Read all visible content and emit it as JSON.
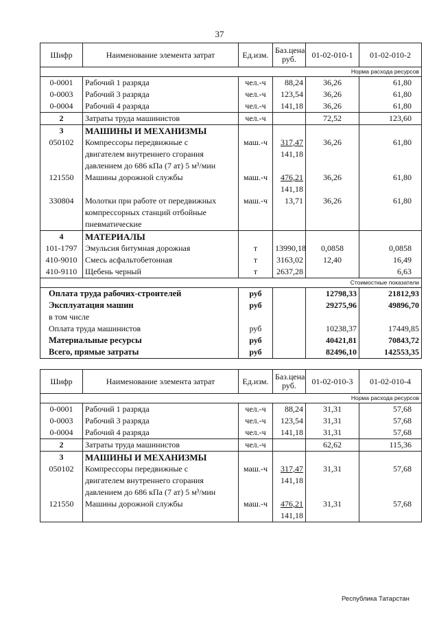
{
  "page_number": "37",
  "footer": "Республика Татарстан",
  "headers": {
    "code": "Шифр",
    "name": "Наименование элемента затрат",
    "unit": "Ед.изм.",
    "price": "Баз.цена\nруб."
  },
  "tables": [
    {
      "cols": [
        "01-02-010-1",
        "01-02-010-2"
      ],
      "norm_label": "Норма расхода ресурсов",
      "cost_label": "Стоимостные показатели",
      "rows": [
        {
          "code": "0-0001",
          "name": "Рабочий 1 разряда",
          "unit": "чел.-ч",
          "price": "88,24",
          "v1": "36,26",
          "v2": "61,80",
          "sep": true
        },
        {
          "code": "0-0003",
          "name": "Рабочий 3 разряда",
          "unit": "чел.-ч",
          "price": "123,54",
          "v1": "36,26",
          "v2": "61,80"
        },
        {
          "code": "0-0004",
          "name": "Рабочий 4 разряда",
          "unit": "чел.-ч",
          "price": "141,18",
          "v1": "36,26",
          "v2": "61,80"
        },
        {
          "code": "2",
          "name": "Затраты труда машинистов",
          "unit": "чел.-ч",
          "price": "",
          "v1": "72,52",
          "v2": "123,60",
          "sep": true,
          "boldcode": true
        },
        {
          "code": "3",
          "name": "МАШИНЫ И МЕХАНИЗМЫ",
          "unit": "",
          "price": "",
          "v1": "",
          "v2": "",
          "sep": true,
          "bold": true
        },
        {
          "code": "050102",
          "name": "Компрессоры передвижные с\nдвигателем внутреннего сгорания\nдавлением до 686 кПа (7 ат) 5 м³/мин",
          "unit": "маш.-ч",
          "price": "317,47",
          "price2": "141,18",
          "v1": "36,26",
          "v2": "61,80"
        },
        {
          "code": "121550",
          "name": "Машины дорожной службы",
          "unit": "маш.-ч",
          "price": "476,21",
          "price2": "141,18",
          "v1": "36,26",
          "v2": "61,80"
        },
        {
          "code": "330804",
          "name": "Молотки при работе от передвижных\nкомпрессорных станций отбойные\nпневматические",
          "unit": "маш.-ч",
          "price": "13,71",
          "v1": "36,26",
          "v2": "61,80"
        },
        {
          "code": "4",
          "name": "МАТЕРИАЛЫ",
          "unit": "",
          "price": "",
          "v1": "",
          "v2": "",
          "sep": true,
          "bold": true
        },
        {
          "code": "101-1797",
          "name": "Эмульсия битумная дорожная",
          "unit": "т",
          "price": "13990,18",
          "v1": "0,0858",
          "v2": "0,0858"
        },
        {
          "code": "410-9010",
          "name": "Смесь асфальтобетонная",
          "unit": "т",
          "price": "3163,02",
          "v1": "12,40",
          "v2": "16,49"
        },
        {
          "code": "410-9110",
          "name": "Щебень черный",
          "unit": "т",
          "price": "2637,28",
          "v1": "",
          "v2": "6,63"
        }
      ],
      "totals": [
        {
          "name": "Оплата труда рабочих-строителей",
          "unit": "руб",
          "v1": "12798,33",
          "v2": "21812,93",
          "bold": true
        },
        {
          "name": "Эксплуатация машин",
          "unit": "руб",
          "v1": "29275,96",
          "v2": "49896,70",
          "bold": true
        },
        {
          "name": "в том числе",
          "unit": "",
          "v1": "",
          "v2": ""
        },
        {
          "name": "Оплата труда машинистов",
          "unit": "руб",
          "v1": "10238,37",
          "v2": "17449,85"
        },
        {
          "name": "Материальные ресурсы",
          "unit": "руб",
          "v1": "40421,81",
          "v2": "70843,72",
          "bold": true
        },
        {
          "name": "Всего, прямые затраты",
          "unit": "руб",
          "v1": "82496,10",
          "v2": "142553,35",
          "bold": true
        }
      ]
    },
    {
      "cols": [
        "01-02-010-3",
        "01-02-010-4"
      ],
      "norm_label": "Норма расхода ресурсов",
      "rows": [
        {
          "code": "0-0001",
          "name": "Рабочий 1 разряда",
          "unit": "чел.-ч",
          "price": "88,24",
          "v1": "31,31",
          "v2": "57,68",
          "sep": true
        },
        {
          "code": "0-0003",
          "name": "Рабочий 3 разряда",
          "unit": "чел.-ч",
          "price": "123,54",
          "v1": "31,31",
          "v2": "57,68"
        },
        {
          "code": "0-0004",
          "name": "Рабочий 4 разряда",
          "unit": "чел.-ч",
          "price": "141,18",
          "v1": "31,31",
          "v2": "57,68"
        },
        {
          "code": "2",
          "name": "Затраты труда машинистов",
          "unit": "чел.-ч",
          "price": "",
          "v1": "62,62",
          "v2": "115,36",
          "sep": true,
          "boldcode": true
        },
        {
          "code": "3",
          "name": "МАШИНЫ И МЕХАНИЗМЫ",
          "unit": "",
          "price": "",
          "v1": "",
          "v2": "",
          "sep": true,
          "bold": true
        },
        {
          "code": "050102",
          "name": "Компрессоры передвижные с\nдвигателем внутреннего сгорания\nдавлением до 686 кПа (7 ат) 5 м³/мин",
          "unit": "маш.-ч",
          "price": "317,47",
          "price2": "141,18",
          "v1": "31,31",
          "v2": "57,68"
        },
        {
          "code": "121550",
          "name": "Машины дорожной службы",
          "unit": "маш.-ч",
          "price": "476,21",
          "price2": "141,18",
          "v1": "31,31",
          "v2": "57,68"
        }
      ]
    }
  ]
}
